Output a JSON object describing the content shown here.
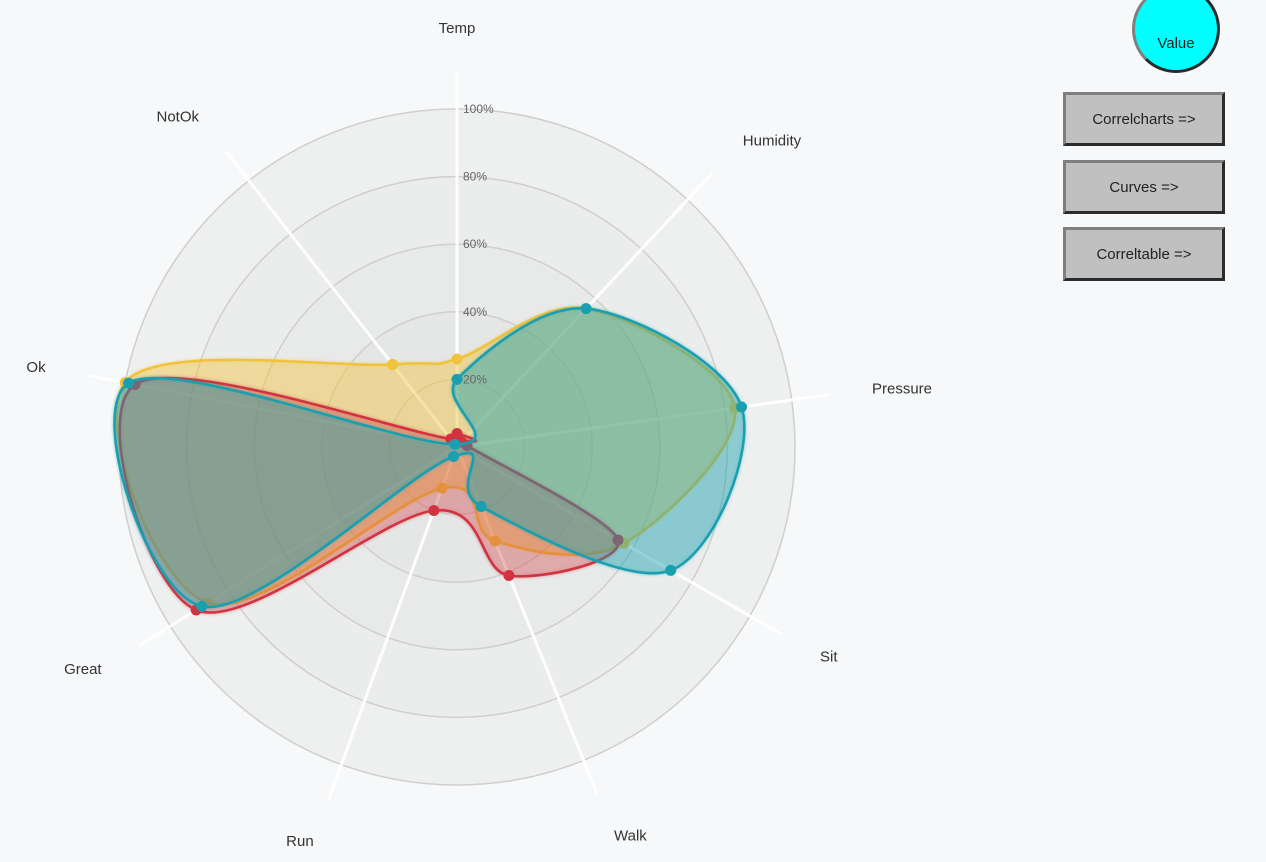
{
  "controls": {
    "value_toggle_label": "Value",
    "value_toggle_color": "#00ffff",
    "buttons": [
      {
        "label": "Correlcharts =>"
      },
      {
        "label": "Curves =>"
      },
      {
        "label": "Correltable =>"
      }
    ]
  },
  "chart_data": {
    "type": "radar",
    "axes": [
      "Temp",
      "Humidity",
      "Pressure",
      "Sit",
      "Walk",
      "Run",
      "Great",
      "Ok",
      "NotOk"
    ],
    "ticks": [
      "20%",
      "40%",
      "60%",
      "80%",
      "100%"
    ],
    "rmax": 100,
    "curve": "smooth",
    "series": [
      {
        "color": "#f0c33c",
        "fill_opacity": 0.45,
        "values": [
          26,
          56,
          83,
          57,
          30,
          13,
          87,
          100,
          31
        ]
      },
      {
        "color": "#d13440",
        "fill_opacity": 0.35,
        "values": [
          4,
          2,
          3,
          55,
          41,
          20,
          91,
          97,
          3
        ]
      },
      {
        "color": "#1a9fb0",
        "fill_opacity": 0.45,
        "values": [
          20,
          56,
          85,
          73,
          19,
          3,
          89,
          99,
          1
        ]
      }
    ]
  }
}
